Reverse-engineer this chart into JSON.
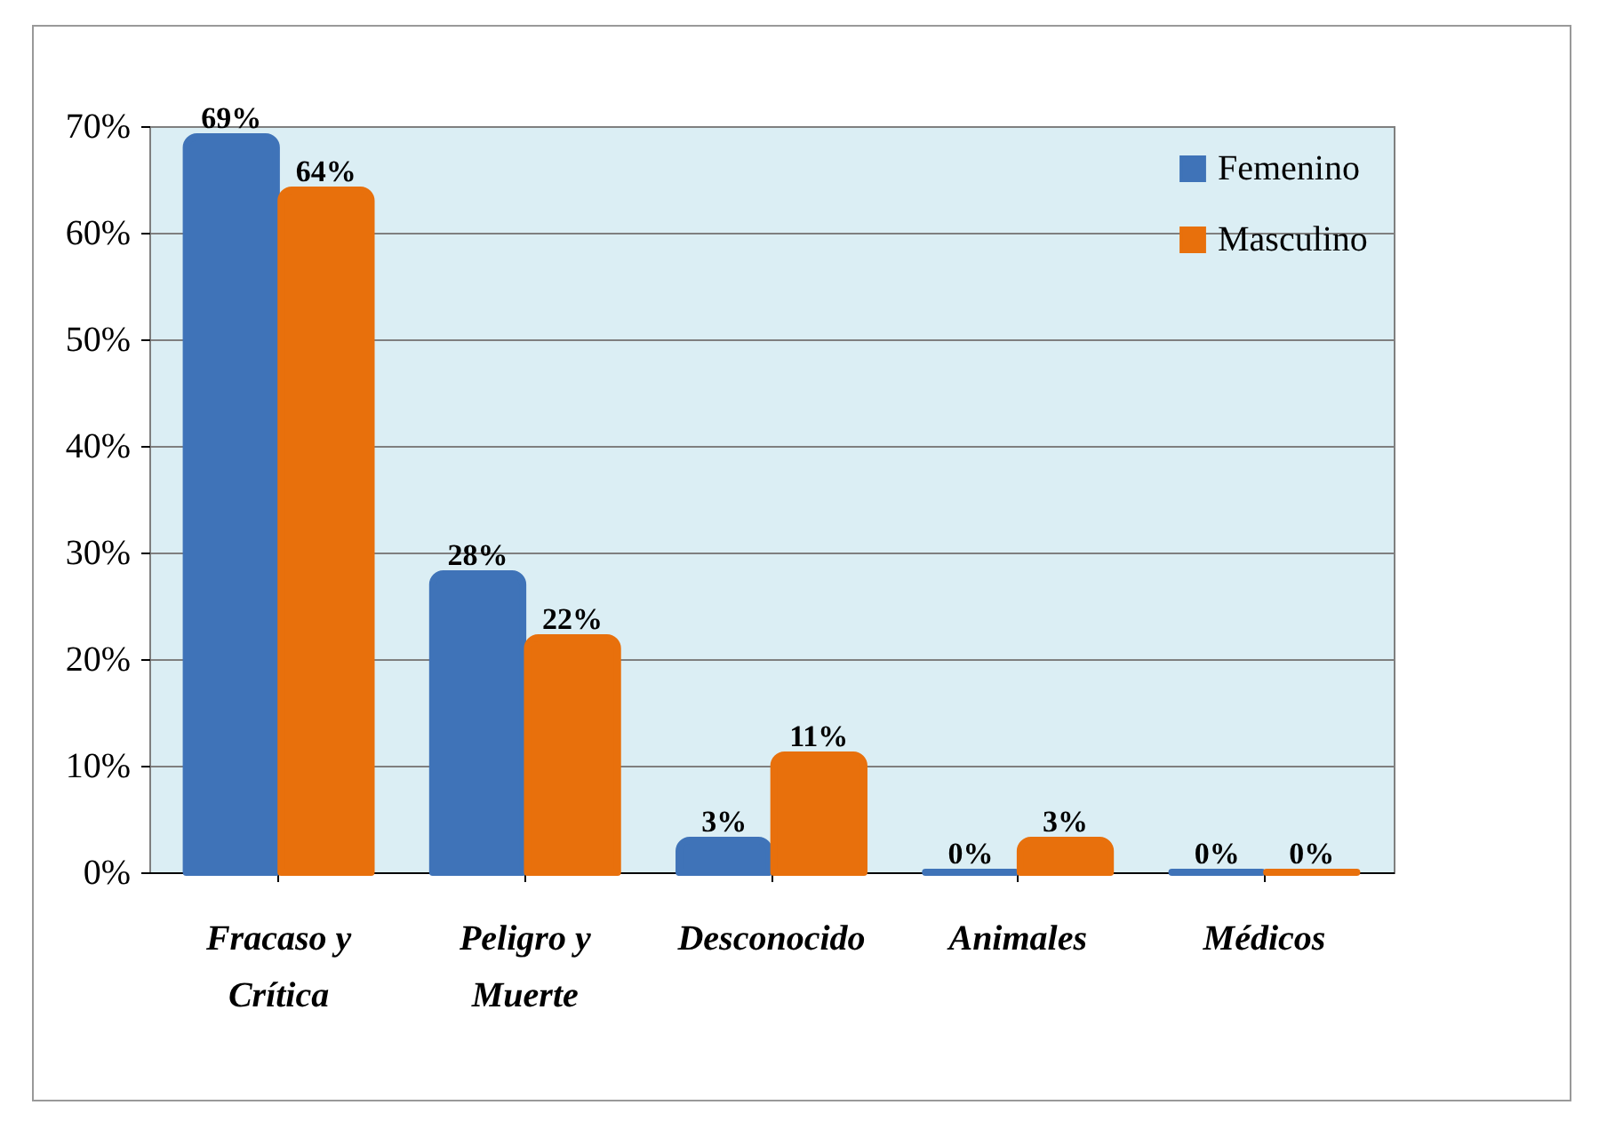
{
  "chart_data": {
    "type": "bar",
    "categories": [
      "Fracaso y\nCrítica",
      "Peligro y\nMuerte",
      "Desconocido",
      "Animales",
      "Médicos"
    ],
    "series": [
      {
        "name": "Femenino",
        "color": "#3f73b8",
        "values": [
          69,
          28,
          3,
          0,
          0
        ],
        "value_labels": [
          "69%",
          "28%",
          "3%",
          "0%",
          "0%"
        ]
      },
      {
        "name": "Masculino",
        "color": "#e8700c",
        "values": [
          64,
          22,
          11,
          3,
          0
        ],
        "value_labels": [
          "64%",
          "22%",
          "11%",
          "3%",
          "0%"
        ]
      }
    ],
    "ylim": [
      0,
      70
    ],
    "yticks": [
      {
        "value": 0,
        "label": "0%"
      },
      {
        "value": 10,
        "label": "10%"
      },
      {
        "value": 20,
        "label": "20%"
      },
      {
        "value": 30,
        "label": "30%"
      },
      {
        "value": 40,
        "label": "40%"
      },
      {
        "value": 50,
        "label": "50%"
      },
      {
        "value": 60,
        "label": "60%"
      },
      {
        "value": 70,
        "label": "70%"
      }
    ],
    "grid": "y",
    "legend": "top right"
  }
}
